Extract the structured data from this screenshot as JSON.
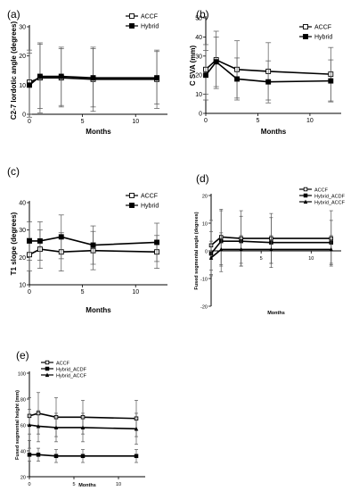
{
  "chart_data": [
    {
      "panel": "(a)",
      "type": "line",
      "xlabel": "Months",
      "ylabel": "C2-7 lordotic angle (degrees)",
      "xticks": [
        "0",
        "5",
        "10"
      ],
      "yticks": [
        "0",
        "10",
        "20",
        "30"
      ],
      "xlim": [
        0,
        13
      ],
      "ylim": [
        0,
        30
      ],
      "legend": "top-right",
      "series": [
        {
          "name": "ACCF",
          "marker": "open-square",
          "points": [
            {
              "x": 0,
              "y": 11,
              "err": 11
            },
            {
              "x": 1,
              "y": 12.5,
              "err": 12
            },
            {
              "x": 3,
              "y": 12.5,
              "err": 10
            },
            {
              "x": 6,
              "y": 12,
              "err": 11
            },
            {
              "x": 12,
              "y": 12,
              "err": 10
            }
          ]
        },
        {
          "name": "Hybrid",
          "marker": "filled-square",
          "points": [
            {
              "x": 0,
              "y": 10,
              "err": 11
            },
            {
              "x": 1,
              "y": 13,
              "err": 11
            },
            {
              "x": 3,
              "y": 13,
              "err": 10
            },
            {
              "x": 6,
              "y": 12.5,
              "err": 10
            },
            {
              "x": 12,
              "y": 12.5,
              "err": 9
            }
          ]
        }
      ]
    },
    {
      "panel": "(b)",
      "type": "line",
      "xlabel": "Months",
      "ylabel": "C SVA (mm)",
      "xticks": [
        "0",
        "5",
        "10"
      ],
      "yticks": [
        "0",
        "10",
        "20",
        "30",
        "40",
        "50"
      ],
      "xlim": [
        0,
        13
      ],
      "ylim": [
        0,
        50
      ],
      "legend": "top-right",
      "series": [
        {
          "name": "ACCF",
          "marker": "open-square",
          "points": [
            {
              "x": 0,
              "y": 23,
              "err": 13
            },
            {
              "x": 1,
              "y": 28,
              "err": 15
            },
            {
              "x": 3,
              "y": 23,
              "err": 15
            },
            {
              "x": 6,
              "y": 22,
              "err": 15
            },
            {
              "x": 12,
              "y": 20.5,
              "err": 14
            }
          ]
        },
        {
          "name": "Hybrid",
          "marker": "filled-square",
          "points": [
            {
              "x": 0,
              "y": 20,
              "err": 13
            },
            {
              "x": 1,
              "y": 27,
              "err": 13
            },
            {
              "x": 3,
              "y": 18,
              "err": 11
            },
            {
              "x": 6,
              "y": 16.5,
              "err": 11
            },
            {
              "x": 12,
              "y": 17,
              "err": 11
            }
          ]
        }
      ]
    },
    {
      "panel": "(c)",
      "type": "line",
      "xlabel": "Months",
      "ylabel": "T1 slope (degrees)",
      "xticks": [
        "0",
        "5",
        "10"
      ],
      "yticks": [
        "10",
        "20",
        "30",
        "40"
      ],
      "xlim": [
        0,
        13
      ],
      "ylim": [
        10,
        40
      ],
      "legend": "top-right",
      "series": [
        {
          "name": "ACCF",
          "marker": "open-square",
          "points": [
            {
              "x": 0,
              "y": 21,
              "err": 6
            },
            {
              "x": 1,
              "y": 23,
              "err": 7
            },
            {
              "x": 3,
              "y": 22,
              "err": 7
            },
            {
              "x": 6,
              "y": 22.5,
              "err": 7
            },
            {
              "x": 12,
              "y": 22,
              "err": 6
            }
          ]
        },
        {
          "name": "Hybrid",
          "marker": "filled-square",
          "points": [
            {
              "x": 0,
              "y": 26,
              "err": 7
            },
            {
              "x": 1,
              "y": 26,
              "err": 7
            },
            {
              "x": 3,
              "y": 27.5,
              "err": 8
            },
            {
              "x": 6,
              "y": 24.5,
              "err": 7
            },
            {
              "x": 12,
              "y": 25.5,
              "err": 7
            }
          ]
        }
      ]
    },
    {
      "panel": "(d)",
      "type": "line",
      "xlabel": "Months",
      "ylabel": "Fused segmental angle (degrees)",
      "xticks": [
        "0",
        "5",
        "10"
      ],
      "yticks": [
        "-20",
        "-10",
        "0",
        "10",
        "20"
      ],
      "xlim": [
        0,
        13
      ],
      "ylim": [
        -20,
        20
      ],
      "legend": "top-right",
      "series": [
        {
          "name": "ACCF",
          "marker": "open-square",
          "points": [
            {
              "x": 0,
              "y": 2,
              "err": 9
            },
            {
              "x": 1,
              "y": 5,
              "err": 10
            },
            {
              "x": 3,
              "y": 4.5,
              "err": 10
            },
            {
              "x": 6,
              "y": 4.5,
              "err": 9
            },
            {
              "x": 12,
              "y": 4.5,
              "err": 10
            }
          ]
        },
        {
          "name": "Hybrid_ACDF",
          "marker": "filled-square",
          "points": [
            {
              "x": 0,
              "y": -1,
              "err": 8
            },
            {
              "x": 1,
              "y": 3.5,
              "err": 11
            },
            {
              "x": 3,
              "y": 3.5,
              "err": 9
            },
            {
              "x": 6,
              "y": 3,
              "err": 9
            },
            {
              "x": 12,
              "y": 3,
              "err": 8
            }
          ]
        },
        {
          "name": "Hybrid_ACCF",
          "marker": "triangle",
          "points": [
            {
              "x": 0,
              "y": -2.5,
              "err": 6
            },
            {
              "x": 1,
              "y": 0.5,
              "err": 6
            },
            {
              "x": 3,
              "y": 0.5,
              "err": 5
            },
            {
              "x": 6,
              "y": 0.5,
              "err": 5
            },
            {
              "x": 12,
              "y": 0.5,
              "err": 5
            }
          ]
        }
      ]
    },
    {
      "panel": "(e)",
      "type": "line",
      "xlabel": "Months",
      "ylabel": "Fused segmental height (mm)",
      "xticks": [
        "0",
        "5",
        "10"
      ],
      "yticks": [
        "20",
        "40",
        "60",
        "80",
        "100"
      ],
      "xlim": [
        0,
        13
      ],
      "ylim": [
        20,
        100
      ],
      "legend": "top-left",
      "series": [
        {
          "name": "ACCF",
          "marker": "open-square",
          "points": [
            {
              "x": 0,
              "y": 67,
              "err": 14
            },
            {
              "x": 1,
              "y": 69,
              "err": 16
            },
            {
              "x": 3,
              "y": 66,
              "err": 15
            },
            {
              "x": 6,
              "y": 66,
              "err": 13
            },
            {
              "x": 12,
              "y": 65,
              "err": 14
            }
          ]
        },
        {
          "name": "Hybrid_ACDF",
          "marker": "filled-square",
          "points": [
            {
              "x": 0,
              "y": 37,
              "err": 5
            },
            {
              "x": 1,
              "y": 37,
              "err": 5
            },
            {
              "x": 3,
              "y": 36,
              "err": 5
            },
            {
              "x": 6,
              "y": 36,
              "err": 5
            },
            {
              "x": 12,
              "y": 36,
              "err": 5
            }
          ]
        },
        {
          "name": "Hybrid_ACCF",
          "marker": "triangle",
          "points": [
            {
              "x": 0,
              "y": 60,
              "err": 12
            },
            {
              "x": 1,
              "y": 59,
              "err": 12
            },
            {
              "x": 3,
              "y": 58,
              "err": 11
            },
            {
              "x": 6,
              "y": 58,
              "err": 11
            },
            {
              "x": 12,
              "y": 57,
              "err": 12
            }
          ]
        }
      ]
    }
  ]
}
